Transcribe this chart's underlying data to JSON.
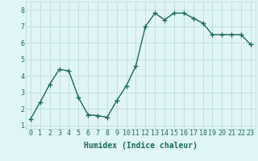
{
  "x": [
    0,
    1,
    2,
    3,
    4,
    5,
    6,
    7,
    8,
    9,
    10,
    11,
    12,
    13,
    14,
    15,
    16,
    17,
    18,
    19,
    20,
    21,
    22,
    23
  ],
  "y": [
    1.4,
    2.4,
    3.5,
    4.4,
    4.3,
    2.7,
    1.65,
    1.6,
    1.5,
    2.5,
    3.4,
    4.6,
    7.0,
    7.8,
    7.4,
    7.8,
    7.8,
    7.5,
    7.2,
    6.5,
    6.5,
    6.5,
    6.5,
    5.9
  ],
  "line_color": "#1a6b5a",
  "marker": "+",
  "marker_size": 4,
  "bg_color": "#e0f5f5",
  "grid_color": "#b8d8d8",
  "xlabel": "Humidex (Indice chaleur)",
  "xlabel_fontsize": 7,
  "ylim": [
    0.8,
    8.5
  ],
  "xlim": [
    -0.5,
    23.5
  ],
  "yticks": [
    1,
    2,
    3,
    4,
    5,
    6,
    7,
    8
  ],
  "xticks": [
    0,
    1,
    2,
    3,
    4,
    5,
    6,
    7,
    8,
    9,
    10,
    11,
    12,
    13,
    14,
    15,
    16,
    17,
    18,
    19,
    20,
    21,
    22,
    23
  ],
  "tick_fontsize": 6,
  "linewidth": 1.0
}
